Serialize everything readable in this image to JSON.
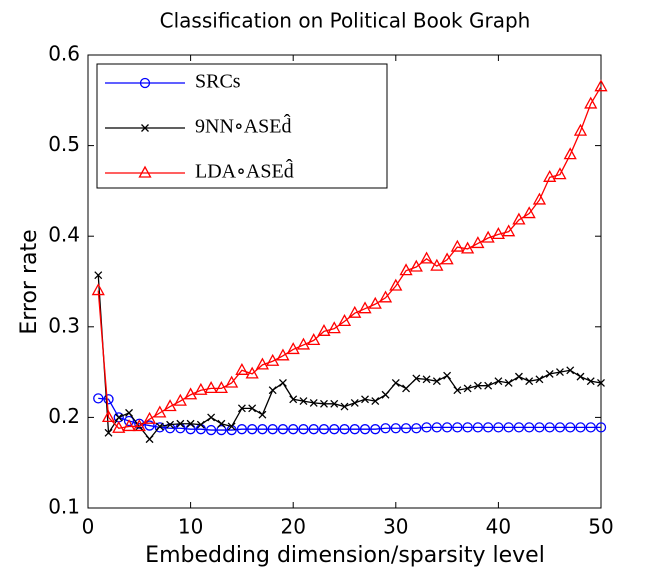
{
  "chart_data": {
    "type": "line",
    "title": "Classification on Political Book Graph",
    "x_label": "Embedding dimension/sparsity level",
    "y_label": "Error rate",
    "x": [
      1,
      2,
      3,
      4,
      5,
      6,
      7,
      8,
      9,
      10,
      11,
      12,
      13,
      14,
      15,
      16,
      17,
      18,
      19,
      20,
      21,
      22,
      23,
      24,
      25,
      26,
      27,
      28,
      29,
      30,
      31,
      32,
      33,
      34,
      35,
      36,
      37,
      38,
      39,
      40,
      41,
      42,
      43,
      44,
      45,
      46,
      47,
      48,
      49,
      50
    ],
    "series": [
      {
        "name": "SRCs",
        "color": "#0000ff",
        "marker": "circle",
        "values": [
          0.221,
          0.22,
          0.2,
          0.196,
          0.193,
          0.191,
          0.189,
          0.188,
          0.188,
          0.187,
          0.187,
          0.186,
          0.186,
          0.186,
          0.187,
          0.187,
          0.187,
          0.187,
          0.187,
          0.187,
          0.187,
          0.187,
          0.187,
          0.187,
          0.187,
          0.187,
          0.187,
          0.187,
          0.188,
          0.188,
          0.188,
          0.188,
          0.189,
          0.189,
          0.189,
          0.189,
          0.189,
          0.189,
          0.189,
          0.189,
          0.189,
          0.189,
          0.189,
          0.189,
          0.189,
          0.189,
          0.189,
          0.189,
          0.189,
          0.189
        ]
      },
      {
        "name": "9NN∘ASEd̂",
        "color": "#000000",
        "marker": "x",
        "values": [
          0.357,
          0.183,
          0.2,
          0.205,
          0.19,
          0.176,
          0.19,
          0.192,
          0.193,
          0.193,
          0.192,
          0.2,
          0.193,
          0.19,
          0.21,
          0.21,
          0.203,
          0.23,
          0.238,
          0.22,
          0.218,
          0.216,
          0.215,
          0.215,
          0.212,
          0.216,
          0.22,
          0.218,
          0.225,
          0.238,
          0.232,
          0.243,
          0.242,
          0.24,
          0.246,
          0.23,
          0.232,
          0.235,
          0.235,
          0.24,
          0.238,
          0.245,
          0.24,
          0.242,
          0.248,
          0.25,
          0.252,
          0.245,
          0.24,
          0.238
        ]
      },
      {
        "name": "LDA∘ASEd̂",
        "color": "#ff0000",
        "marker": "triangle",
        "values": [
          0.34,
          0.2,
          0.188,
          0.19,
          0.19,
          0.198,
          0.205,
          0.212,
          0.218,
          0.225,
          0.23,
          0.232,
          0.232,
          0.238,
          0.252,
          0.248,
          0.258,
          0.262,
          0.268,
          0.275,
          0.28,
          0.285,
          0.295,
          0.298,
          0.306,
          0.315,
          0.32,
          0.325,
          0.332,
          0.345,
          0.362,
          0.366,
          0.375,
          0.367,
          0.374,
          0.388,
          0.386,
          0.392,
          0.398,
          0.402,
          0.405,
          0.418,
          0.425,
          0.44,
          0.465,
          0.468,
          0.49,
          0.516,
          0.546,
          0.565
        ]
      }
    ],
    "xlim": [
      0,
      50
    ],
    "xticks": [
      0,
      10,
      20,
      30,
      40,
      50
    ],
    "ylim": [
      0.1,
      0.6
    ],
    "yticks": [
      0.1,
      0.2,
      0.3,
      0.4,
      0.5,
      0.6
    ],
    "legend": "upper left"
  }
}
